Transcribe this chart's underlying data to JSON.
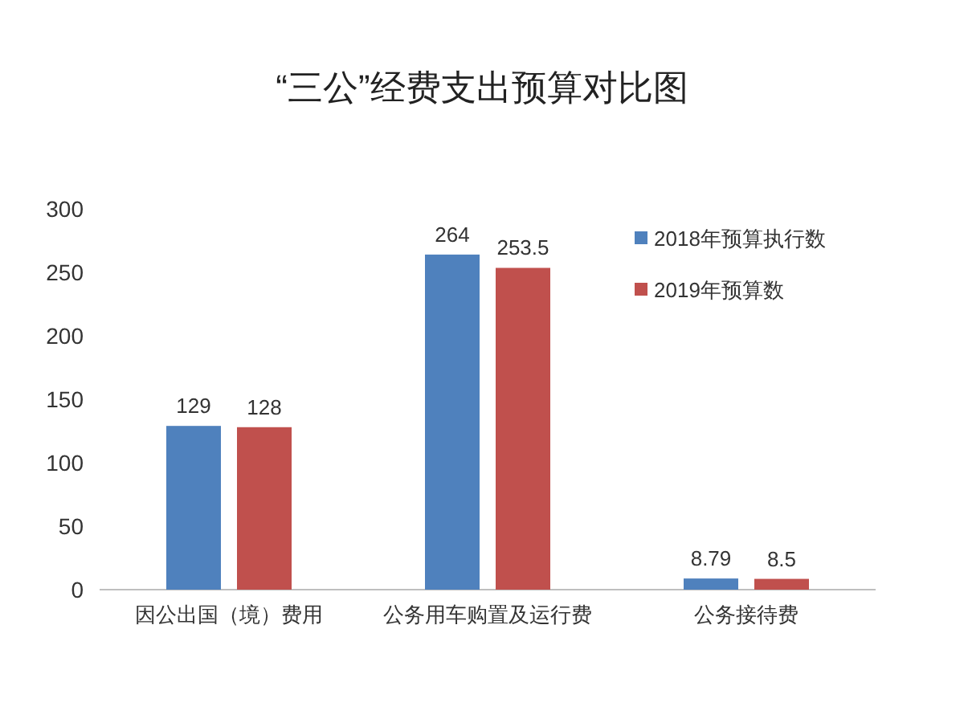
{
  "chart_data": {
    "type": "bar",
    "title": "“三公”经费支出预算对比图",
    "categories": [
      "因公出国（境）费用",
      "公务用车购置及运行费",
      "公务接待费"
    ],
    "series": [
      {
        "name": "2018年预算执行数",
        "color": "#4f81bd",
        "values": [
          129,
          264,
          8.79
        ]
      },
      {
        "name": "2019年预算数",
        "color": "#c0504d",
        "values": [
          128,
          253.5,
          8.5
        ]
      }
    ],
    "ylim": [
      0,
      300
    ],
    "yticks": [
      0,
      50,
      100,
      150,
      200,
      250,
      300
    ],
    "data_labels": true,
    "legend": "top right",
    "grid": false
  }
}
